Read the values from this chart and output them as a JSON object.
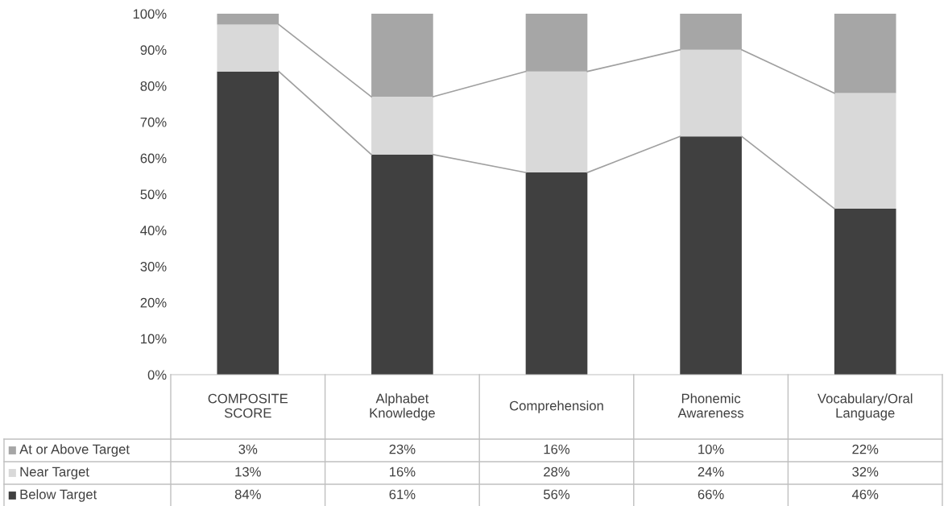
{
  "chart_data": {
    "type": "bar",
    "stacked": true,
    "legend": "bottom",
    "grid": false,
    "categories": [
      "COMPOSITE\nSCORE",
      "Alphabet\nKnowledge",
      "Comprehension",
      "Phonemic\nAwareness",
      "Vocabulary/Oral\nLanguage"
    ],
    "series": [
      {
        "name": "Below Target",
        "color": "#404040",
        "values": [
          84,
          61,
          56,
          66,
          46
        ],
        "value_labels": [
          "84%",
          "61%",
          "56%",
          "66%",
          "46%"
        ]
      },
      {
        "name": "Near Target",
        "color": "#d9d9d9",
        "values": [
          13,
          16,
          28,
          24,
          32
        ],
        "value_labels": [
          "13%",
          "16%",
          "28%",
          "24%",
          "32%"
        ]
      },
      {
        "name": "At or Above Target",
        "color": "#a6a6a6",
        "values": [
          3,
          23,
          16,
          10,
          22
        ],
        "value_labels": [
          "3%",
          "23%",
          "16%",
          "10%",
          "22%"
        ]
      }
    ],
    "ylim": [
      0,
      100
    ],
    "yticks": [
      {
        "value": 0,
        "label": "0%"
      },
      {
        "value": 10,
        "label": "10%"
      },
      {
        "value": 20,
        "label": "20%"
      },
      {
        "value": 30,
        "label": "30%"
      },
      {
        "value": 40,
        "label": "40%"
      },
      {
        "value": 50,
        "label": "50%"
      },
      {
        "value": 60,
        "label": "60%"
      },
      {
        "value": 70,
        "label": "70%"
      },
      {
        "value": 80,
        "label": "80%"
      },
      {
        "value": 90,
        "label": "90%"
      },
      {
        "value": 100,
        "label": "100%"
      }
    ]
  }
}
